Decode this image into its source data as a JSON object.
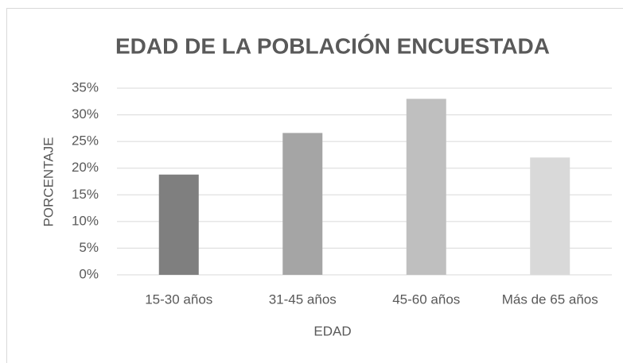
{
  "chart_data": {
    "type": "bar",
    "title": "EDAD DE LA POBLACIÓN ENCUESTADA",
    "x_label": "EDAD",
    "y_label": "PORCENTAJE",
    "categories": [
      "15-30 años",
      "31-45 años",
      "45-60 años",
      "Más de 65 años"
    ],
    "values": [
      18.8,
      26.6,
      33,
      22
    ],
    "colors": [
      "#7f7f7f",
      "#a5a5a5",
      "#bfbfbf",
      "#d9d9d9"
    ],
    "ylim": [
      0,
      35
    ],
    "yticks": [
      {
        "value": 0,
        "label": "0%"
      },
      {
        "value": 5,
        "label": "5%"
      },
      {
        "value": 10,
        "label": "10%"
      },
      {
        "value": 15,
        "label": "15%"
      },
      {
        "value": 20,
        "label": "20%"
      },
      {
        "value": 25,
        "label": "25%"
      },
      {
        "value": 30,
        "label": "30%"
      },
      {
        "value": 35,
        "label": "35%"
      }
    ],
    "grid": true
  }
}
